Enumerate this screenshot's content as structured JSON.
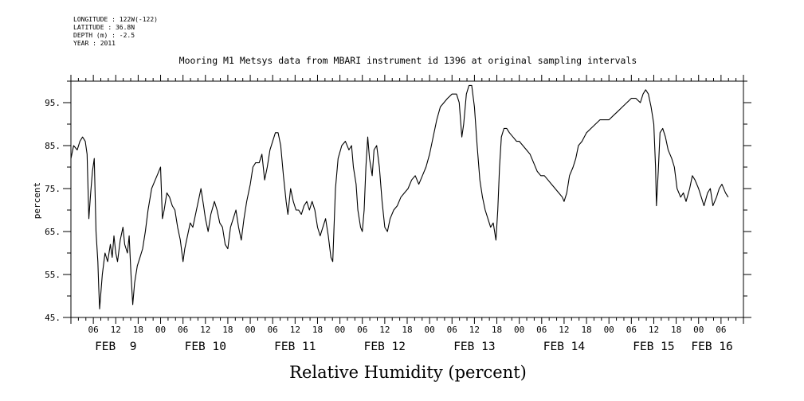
{
  "header": {
    "lines": [
      "LONGITUDE : 122W(-122)",
      "LATITUDE : 36.8N",
      "DEPTH (m) : -2.5",
      "YEAR : 2011"
    ]
  },
  "chart_data": {
    "type": "line",
    "title": "Mooring M1 Metsys data from MBARI instrument id 1396 at original sampling intervals",
    "xlabel": "Relative Humidity (percent)",
    "ylabel": "percent",
    "ylim": [
      45,
      100
    ],
    "xlim": [
      1.0,
      8.5
    ],
    "yticks": [
      45,
      55,
      65,
      75,
      85,
      95
    ],
    "ytick_labels": [
      "45.",
      "55.",
      "65.",
      "75.",
      "85.",
      "95."
    ],
    "hour_ticks": [
      {
        "x": 1.25,
        "label": "06"
      },
      {
        "x": 1.5,
        "label": "12"
      },
      {
        "x": 1.75,
        "label": "18"
      },
      {
        "x": 2.0,
        "label": "00"
      },
      {
        "x": 2.25,
        "label": "06"
      },
      {
        "x": 2.5,
        "label": "12"
      },
      {
        "x": 2.75,
        "label": "18"
      },
      {
        "x": 3.0,
        "label": "00"
      },
      {
        "x": 3.25,
        "label": "06"
      },
      {
        "x": 3.5,
        "label": "12"
      },
      {
        "x": 3.75,
        "label": "18"
      },
      {
        "x": 4.0,
        "label": "00"
      },
      {
        "x": 4.25,
        "label": "06"
      },
      {
        "x": 4.5,
        "label": "12"
      },
      {
        "x": 4.75,
        "label": "18"
      },
      {
        "x": 5.0,
        "label": "00"
      },
      {
        "x": 5.25,
        "label": "06"
      },
      {
        "x": 5.5,
        "label": "12"
      },
      {
        "x": 5.75,
        "label": "18"
      },
      {
        "x": 6.0,
        "label": "00"
      },
      {
        "x": 6.25,
        "label": "06"
      },
      {
        "x": 6.5,
        "label": "12"
      },
      {
        "x": 6.75,
        "label": "18"
      },
      {
        "x": 7.0,
        "label": "00"
      },
      {
        "x": 7.25,
        "label": "06"
      },
      {
        "x": 7.5,
        "label": "12"
      },
      {
        "x": 7.75,
        "label": "18"
      },
      {
        "x": 8.0,
        "label": "00"
      },
      {
        "x": 8.25,
        "label": "06"
      }
    ],
    "day_labels": [
      {
        "x": 1.5,
        "label": "FEB  9"
      },
      {
        "x": 2.5,
        "label": "FEB 10"
      },
      {
        "x": 3.5,
        "label": "FEB 11"
      },
      {
        "x": 4.5,
        "label": "FEB 12"
      },
      {
        "x": 5.5,
        "label": "FEB 13"
      },
      {
        "x": 6.5,
        "label": "FEB 14"
      },
      {
        "x": 7.5,
        "label": "FEB 15"
      },
      {
        "x": 8.15,
        "label": "FEB 16"
      }
    ],
    "series": [
      {
        "points": [
          [
            1.0,
            82
          ],
          [
            1.03,
            85
          ],
          [
            1.07,
            84
          ],
          [
            1.1,
            86
          ],
          [
            1.13,
            87
          ],
          [
            1.16,
            86
          ],
          [
            1.18,
            83
          ],
          [
            1.2,
            68
          ],
          [
            1.22,
            74
          ],
          [
            1.24,
            79
          ],
          [
            1.26,
            82
          ],
          [
            1.28,
            65
          ],
          [
            1.3,
            58
          ],
          [
            1.31,
            52
          ],
          [
            1.32,
            47
          ],
          [
            1.35,
            55
          ],
          [
            1.38,
            60
          ],
          [
            1.41,
            58
          ],
          [
            1.44,
            62
          ],
          [
            1.46,
            59
          ],
          [
            1.48,
            64
          ],
          [
            1.5,
            60
          ],
          [
            1.52,
            58
          ],
          [
            1.55,
            63
          ],
          [
            1.58,
            66
          ],
          [
            1.6,
            62
          ],
          [
            1.63,
            60
          ],
          [
            1.65,
            64
          ],
          [
            1.67,
            55
          ],
          [
            1.69,
            48
          ],
          [
            1.71,
            53
          ],
          [
            1.74,
            57
          ],
          [
            1.77,
            59
          ],
          [
            1.8,
            61
          ],
          [
            1.83,
            65
          ],
          [
            1.86,
            70
          ],
          [
            1.9,
            75
          ],
          [
            1.94,
            77
          ],
          [
            1.98,
            79
          ],
          [
            2.0,
            80
          ],
          [
            2.02,
            68
          ],
          [
            2.04,
            70
          ],
          [
            2.07,
            74
          ],
          [
            2.1,
            73
          ],
          [
            2.13,
            71
          ],
          [
            2.16,
            70
          ],
          [
            2.19,
            66
          ],
          [
            2.22,
            63
          ],
          [
            2.25,
            58
          ],
          [
            2.27,
            61
          ],
          [
            2.3,
            64
          ],
          [
            2.33,
            67
          ],
          [
            2.36,
            66
          ],
          [
            2.39,
            69
          ],
          [
            2.42,
            72
          ],
          [
            2.45,
            75
          ],
          [
            2.48,
            71
          ],
          [
            2.5,
            68
          ],
          [
            2.53,
            65
          ],
          [
            2.56,
            69
          ],
          [
            2.6,
            72
          ],
          [
            2.63,
            70
          ],
          [
            2.66,
            67
          ],
          [
            2.69,
            66
          ],
          [
            2.72,
            62
          ],
          [
            2.75,
            61
          ],
          [
            2.78,
            66
          ],
          [
            2.81,
            68
          ],
          [
            2.84,
            70
          ],
          [
            2.87,
            66
          ],
          [
            2.9,
            63
          ],
          [
            2.93,
            68
          ],
          [
            2.96,
            72
          ],
          [
            3.0,
            76
          ],
          [
            3.03,
            80
          ],
          [
            3.06,
            81
          ],
          [
            3.1,
            81
          ],
          [
            3.13,
            83
          ],
          [
            3.16,
            77
          ],
          [
            3.19,
            80
          ],
          [
            3.22,
            84
          ],
          [
            3.25,
            86
          ],
          [
            3.28,
            88
          ],
          [
            3.31,
            88
          ],
          [
            3.34,
            85
          ],
          [
            3.37,
            78
          ],
          [
            3.4,
            72
          ],
          [
            3.42,
            69
          ],
          [
            3.45,
            75
          ],
          [
            3.48,
            72
          ],
          [
            3.51,
            70
          ],
          [
            3.54,
            70
          ],
          [
            3.57,
            69
          ],
          [
            3.6,
            71
          ],
          [
            3.63,
            72
          ],
          [
            3.66,
            70
          ],
          [
            3.69,
            72
          ],
          [
            3.72,
            70
          ],
          [
            3.75,
            66
          ],
          [
            3.78,
            64
          ],
          [
            3.81,
            66
          ],
          [
            3.84,
            68
          ],
          [
            3.87,
            64
          ],
          [
            3.9,
            59
          ],
          [
            3.92,
            58
          ],
          [
            3.95,
            75
          ],
          [
            3.98,
            82
          ],
          [
            4.02,
            85
          ],
          [
            4.06,
            86
          ],
          [
            4.1,
            84
          ],
          [
            4.13,
            85
          ],
          [
            4.15,
            80
          ],
          [
            4.18,
            76
          ],
          [
            4.2,
            70
          ],
          [
            4.23,
            66
          ],
          [
            4.25,
            65
          ],
          [
            4.27,
            70
          ],
          [
            4.29,
            80
          ],
          [
            4.31,
            87
          ],
          [
            4.33,
            82
          ],
          [
            4.36,
            78
          ],
          [
            4.38,
            84
          ],
          [
            4.41,
            85
          ],
          [
            4.44,
            80
          ],
          [
            4.47,
            72
          ],
          [
            4.5,
            66
          ],
          [
            4.53,
            65
          ],
          [
            4.56,
            68
          ],
          [
            4.6,
            70
          ],
          [
            4.64,
            71
          ],
          [
            4.68,
            73
          ],
          [
            4.72,
            74
          ],
          [
            4.76,
            75
          ],
          [
            4.8,
            77
          ],
          [
            4.84,
            78
          ],
          [
            4.88,
            76
          ],
          [
            4.92,
            78
          ],
          [
            4.96,
            80
          ],
          [
            5.0,
            83
          ],
          [
            5.04,
            87
          ],
          [
            5.08,
            91
          ],
          [
            5.12,
            94
          ],
          [
            5.16,
            95
          ],
          [
            5.2,
            96
          ],
          [
            5.25,
            97
          ],
          [
            5.3,
            97
          ],
          [
            5.33,
            95
          ],
          [
            5.36,
            87
          ],
          [
            5.38,
            90
          ],
          [
            5.41,
            97
          ],
          [
            5.44,
            99
          ],
          [
            5.47,
            99
          ],
          [
            5.5,
            94
          ],
          [
            5.53,
            85
          ],
          [
            5.56,
            77
          ],
          [
            5.59,
            73
          ],
          [
            5.62,
            70
          ],
          [
            5.65,
            68
          ],
          [
            5.68,
            66
          ],
          [
            5.71,
            67
          ],
          [
            5.74,
            63
          ],
          [
            5.76,
            70
          ],
          [
            5.78,
            80
          ],
          [
            5.8,
            87
          ],
          [
            5.83,
            89
          ],
          [
            5.86,
            89
          ],
          [
            5.89,
            88
          ],
          [
            5.93,
            87
          ],
          [
            5.97,
            86
          ],
          [
            6.0,
            86
          ],
          [
            6.04,
            85
          ],
          [
            6.08,
            84
          ],
          [
            6.12,
            83
          ],
          [
            6.16,
            81
          ],
          [
            6.2,
            79
          ],
          [
            6.24,
            78
          ],
          [
            6.28,
            78
          ],
          [
            6.32,
            77
          ],
          [
            6.36,
            76
          ],
          [
            6.4,
            75
          ],
          [
            6.44,
            74
          ],
          [
            6.48,
            73
          ],
          [
            6.5,
            72
          ],
          [
            6.53,
            74
          ],
          [
            6.56,
            78
          ],
          [
            6.6,
            80
          ],
          [
            6.63,
            82
          ],
          [
            6.66,
            85
          ],
          [
            6.7,
            86
          ],
          [
            6.75,
            88
          ],
          [
            6.8,
            89
          ],
          [
            6.85,
            90
          ],
          [
            6.9,
            91
          ],
          [
            6.95,
            91
          ],
          [
            7.0,
            91
          ],
          [
            7.05,
            92
          ],
          [
            7.1,
            93
          ],
          [
            7.15,
            94
          ],
          [
            7.2,
            95
          ],
          [
            7.25,
            96
          ],
          [
            7.3,
            96
          ],
          [
            7.35,
            95
          ],
          [
            7.38,
            97
          ],
          [
            7.41,
            98
          ],
          [
            7.44,
            97
          ],
          [
            7.47,
            94
          ],
          [
            7.5,
            90
          ],
          [
            7.52,
            80
          ],
          [
            7.53,
            71
          ],
          [
            7.55,
            79
          ],
          [
            7.57,
            88
          ],
          [
            7.6,
            89
          ],
          [
            7.63,
            87
          ],
          [
            7.66,
            84
          ],
          [
            7.7,
            82
          ],
          [
            7.73,
            80
          ],
          [
            7.76,
            75
          ],
          [
            7.8,
            73
          ],
          [
            7.83,
            74
          ],
          [
            7.86,
            72
          ],
          [
            7.9,
            75
          ],
          [
            7.93,
            78
          ],
          [
            7.96,
            77
          ],
          [
            8.0,
            75
          ],
          [
            8.03,
            73
          ],
          [
            8.06,
            71
          ],
          [
            8.1,
            74
          ],
          [
            8.13,
            75
          ],
          [
            8.16,
            71
          ],
          [
            8.2,
            73
          ],
          [
            8.23,
            75
          ],
          [
            8.26,
            76
          ],
          [
            8.3,
            74
          ],
          [
            8.33,
            73
          ]
        ]
      }
    ]
  }
}
